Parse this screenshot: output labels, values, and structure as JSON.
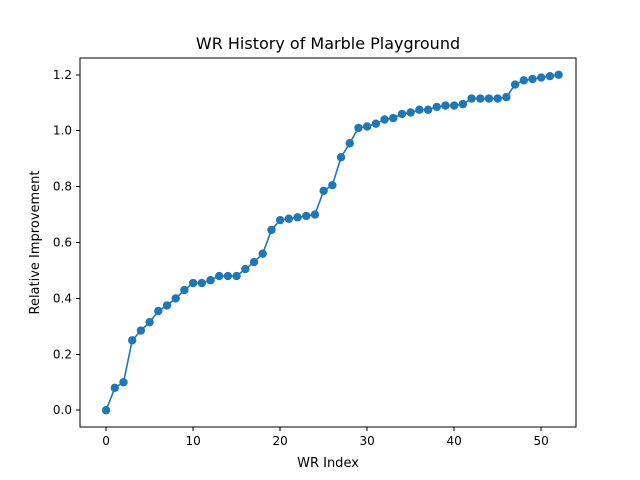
{
  "chart_data": {
    "type": "line",
    "title": "WR History of Marble Playground",
    "xlabel": "WR Index",
    "ylabel": "Relative Improvement",
    "xlim": [
      -3,
      54
    ],
    "ylim": [
      -0.06,
      1.26
    ],
    "xticks": [
      0,
      10,
      20,
      30,
      40,
      50
    ],
    "xtick_labels": [
      "0",
      "10",
      "20",
      "30",
      "40",
      "50"
    ],
    "yticks": [
      0.0,
      0.2,
      0.4,
      0.6,
      0.8,
      1.0,
      1.2
    ],
    "ytick_labels": [
      "0.0",
      "0.2",
      "0.4",
      "0.6",
      "0.8",
      "1.0",
      "1.2"
    ],
    "grid": false,
    "markers": true,
    "color": "#1f77b4",
    "series": [
      {
        "x": [
          0,
          1,
          2,
          3,
          4,
          5,
          6,
          7,
          8,
          9,
          10,
          11,
          12,
          13,
          14,
          15,
          16,
          17,
          18,
          19,
          20,
          21,
          22,
          23,
          24,
          25,
          26,
          27,
          28,
          29,
          30,
          31,
          32,
          33,
          34,
          35,
          36,
          37,
          38,
          39,
          40,
          41,
          42,
          43,
          44,
          45,
          46,
          47,
          48,
          49,
          50,
          51,
          52
        ],
        "values": [
          0.0,
          0.08,
          0.1,
          0.25,
          0.285,
          0.315,
          0.355,
          0.375,
          0.4,
          0.43,
          0.455,
          0.455,
          0.465,
          0.48,
          0.48,
          0.48,
          0.505,
          0.53,
          0.56,
          0.645,
          0.68,
          0.685,
          0.69,
          0.695,
          0.7,
          0.785,
          0.805,
          0.905,
          0.955,
          1.01,
          1.015,
          1.025,
          1.04,
          1.045,
          1.06,
          1.065,
          1.075,
          1.075,
          1.085,
          1.09,
          1.09,
          1.095,
          1.115,
          1.115,
          1.115,
          1.115,
          1.12,
          1.165,
          1.18,
          1.185,
          1.19,
          1.195,
          1.2
        ]
      }
    ]
  }
}
